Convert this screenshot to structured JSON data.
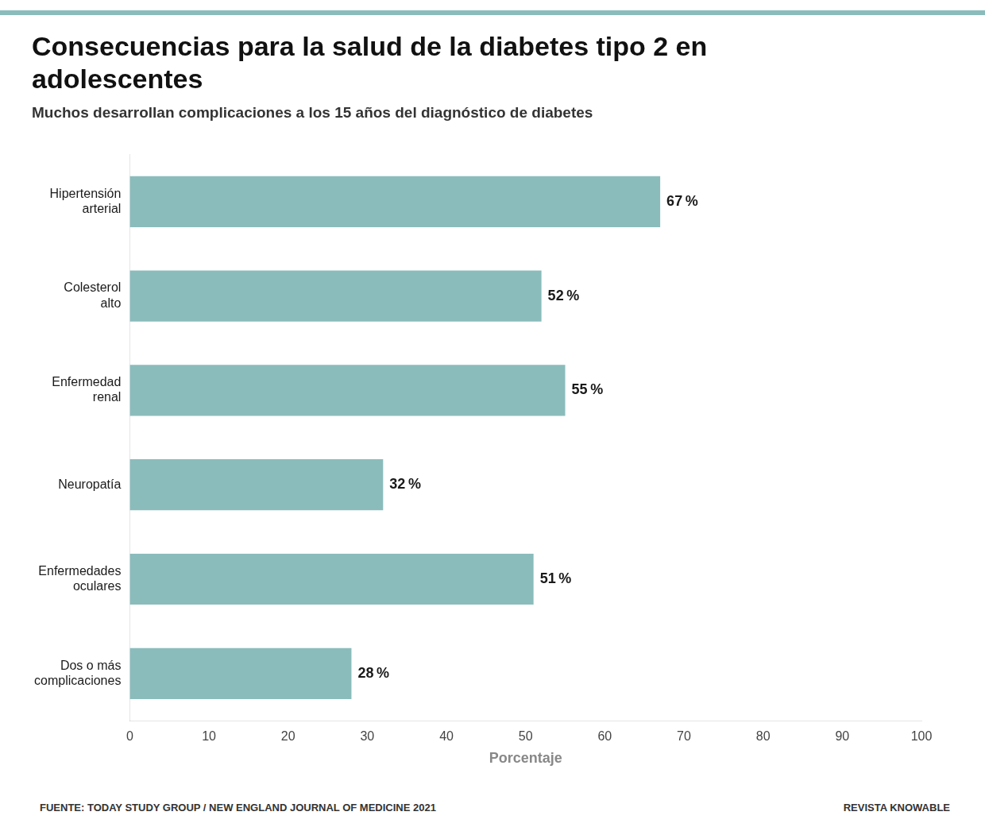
{
  "chart_data": {
    "type": "bar",
    "orientation": "horizontal",
    "title": [
      "Consecuencias para la salud de la diabetes tipo 2 en",
      "adolescentes"
    ],
    "subtitle": "Muchos desarrollan complicaciones a los 15 años del diagnóstico de diabetes",
    "x_label": "Porcentaje",
    "categories": [
      "Hipertensión\narterial",
      "Colesterol\nalto",
      "Enfermedad\nrenal",
      "Neuropatía",
      "Enfermedades\noculares",
      "Dos o más\ncomplicaciones"
    ],
    "values": [
      67,
      52,
      55,
      32,
      51,
      28
    ],
    "value_labels": [
      "67 %",
      "52 %",
      "55 %",
      "32 %",
      "51 %",
      "28 %"
    ],
    "data_labels": true,
    "color": "#8bbcbc",
    "xlim": [
      0,
      100
    ],
    "xticks": [
      0,
      10,
      20,
      30,
      40,
      50,
      60,
      70,
      80,
      90,
      100
    ],
    "grid": false,
    "annotations": [
      "FUENTE: TODAY STUDY GROUP / NEW ENGLAND JOURNAL OF MEDICINE 2021",
      "REVISTA KNOWABLE"
    ]
  }
}
